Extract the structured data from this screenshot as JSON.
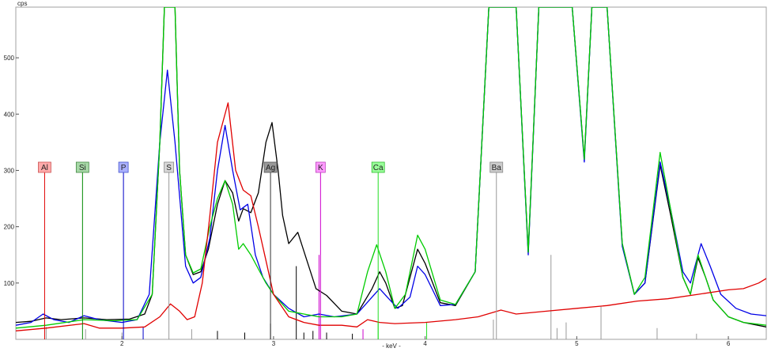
{
  "chart_data": {
    "type": "line",
    "xlabel": "- keV -",
    "ylabel": "cps",
    "xlim": [
      1.3,
      6.25
    ],
    "ylim": [
      0,
      590
    ],
    "x_ticks": [
      2,
      3,
      4,
      5,
      6
    ],
    "y_ticks": [
      100,
      200,
      300,
      400,
      500
    ],
    "grid": false,
    "series": [
      {
        "color": "#000000",
        "points": [
          [
            1.3,
            30
          ],
          [
            1.4,
            32
          ],
          [
            1.5,
            38
          ],
          [
            1.6,
            35
          ],
          [
            1.75,
            38
          ],
          [
            1.9,
            35
          ],
          [
            2.05,
            36
          ],
          [
            2.15,
            45
          ],
          [
            2.2,
            80
          ],
          [
            2.25,
            350
          ],
          [
            2.28,
            590
          ],
          [
            2.35,
            590
          ],
          [
            2.38,
            300
          ],
          [
            2.42,
            150
          ],
          [
            2.47,
            115
          ],
          [
            2.52,
            120
          ],
          [
            2.57,
            160
          ],
          [
            2.63,
            240
          ],
          [
            2.68,
            282
          ],
          [
            2.73,
            260
          ],
          [
            2.77,
            210
          ],
          [
            2.8,
            232
          ],
          [
            2.85,
            225
          ],
          [
            2.9,
            260
          ],
          [
            2.95,
            350
          ],
          [
            2.99,
            385
          ],
          [
            3.03,
            300
          ],
          [
            3.06,
            220
          ],
          [
            3.1,
            170
          ],
          [
            3.16,
            190
          ],
          [
            3.22,
            140
          ],
          [
            3.28,
            90
          ],
          [
            3.35,
            78
          ],
          [
            3.45,
            50
          ],
          [
            3.55,
            45
          ],
          [
            3.65,
            90
          ],
          [
            3.7,
            120
          ],
          [
            3.74,
            100
          ],
          [
            3.8,
            55
          ],
          [
            3.85,
            60
          ],
          [
            3.95,
            160
          ],
          [
            4.0,
            135
          ],
          [
            4.1,
            65
          ],
          [
            4.2,
            60
          ],
          [
            4.33,
            120
          ],
          [
            4.42,
            590
          ],
          [
            4.6,
            590
          ],
          [
            4.68,
            155
          ],
          [
            4.75,
            590
          ],
          [
            4.97,
            590
          ],
          [
            5.05,
            320
          ],
          [
            5.1,
            590
          ],
          [
            5.2,
            590
          ],
          [
            5.3,
            170
          ],
          [
            5.38,
            80
          ],
          [
            5.45,
            100
          ],
          [
            5.55,
            310
          ],
          [
            5.62,
            220
          ],
          [
            5.7,
            110
          ],
          [
            5.75,
            80
          ],
          [
            5.8,
            145
          ],
          [
            5.85,
            110
          ],
          [
            5.9,
            70
          ],
          [
            6.0,
            40
          ],
          [
            6.1,
            30
          ],
          [
            6.25,
            22
          ]
        ]
      },
      {
        "color": "#0000e6",
        "points": [
          [
            1.3,
            25
          ],
          [
            1.4,
            30
          ],
          [
            1.48,
            45
          ],
          [
            1.55,
            35
          ],
          [
            1.65,
            30
          ],
          [
            1.75,
            42
          ],
          [
            1.85,
            35
          ],
          [
            2.0,
            30
          ],
          [
            2.1,
            35
          ],
          [
            2.18,
            80
          ],
          [
            2.25,
            350
          ],
          [
            2.3,
            478
          ],
          [
            2.35,
            350
          ],
          [
            2.42,
            130
          ],
          [
            2.47,
            100
          ],
          [
            2.52,
            110
          ],
          [
            2.58,
            180
          ],
          [
            2.63,
            300
          ],
          [
            2.68,
            380
          ],
          [
            2.73,
            300
          ],
          [
            2.78,
            230
          ],
          [
            2.83,
            240
          ],
          [
            2.88,
            150
          ],
          [
            2.93,
            110
          ],
          [
            3.0,
            80
          ],
          [
            3.1,
            55
          ],
          [
            3.2,
            40
          ],
          [
            3.3,
            45
          ],
          [
            3.4,
            40
          ],
          [
            3.55,
            45
          ],
          [
            3.65,
            75
          ],
          [
            3.7,
            90
          ],
          [
            3.75,
            75
          ],
          [
            3.82,
            55
          ],
          [
            3.9,
            75
          ],
          [
            3.95,
            130
          ],
          [
            4.0,
            115
          ],
          [
            4.1,
            60
          ],
          [
            4.2,
            62
          ],
          [
            4.33,
            120
          ],
          [
            4.42,
            590
          ],
          [
            4.6,
            590
          ],
          [
            4.68,
            150
          ],
          [
            4.75,
            590
          ],
          [
            4.97,
            590
          ],
          [
            5.05,
            315
          ],
          [
            5.1,
            590
          ],
          [
            5.2,
            590
          ],
          [
            5.3,
            165
          ],
          [
            5.38,
            80
          ],
          [
            5.45,
            100
          ],
          [
            5.55,
            315
          ],
          [
            5.62,
            230
          ],
          [
            5.7,
            120
          ],
          [
            5.75,
            100
          ],
          [
            5.82,
            170
          ],
          [
            5.88,
            130
          ],
          [
            5.95,
            80
          ],
          [
            6.05,
            55
          ],
          [
            6.15,
            45
          ],
          [
            6.25,
            42
          ]
        ]
      },
      {
        "color": "#00cc00",
        "points": [
          [
            1.3,
            20
          ],
          [
            1.5,
            25
          ],
          [
            1.75,
            35
          ],
          [
            1.95,
            33
          ],
          [
            2.1,
            35
          ],
          [
            2.2,
            80
          ],
          [
            2.25,
            350
          ],
          [
            2.28,
            590
          ],
          [
            2.35,
            590
          ],
          [
            2.38,
            300
          ],
          [
            2.42,
            150
          ],
          [
            2.47,
            118
          ],
          [
            2.52,
            125
          ],
          [
            2.58,
            200
          ],
          [
            2.63,
            250
          ],
          [
            2.68,
            282
          ],
          [
            2.73,
            240
          ],
          [
            2.77,
            160
          ],
          [
            2.8,
            170
          ],
          [
            2.85,
            150
          ],
          [
            2.9,
            125
          ],
          [
            2.95,
            100
          ],
          [
            3.0,
            80
          ],
          [
            3.1,
            50
          ],
          [
            3.2,
            45
          ],
          [
            3.3,
            40
          ],
          [
            3.45,
            40
          ],
          [
            3.55,
            45
          ],
          [
            3.62,
            120
          ],
          [
            3.68,
            168
          ],
          [
            3.74,
            120
          ],
          [
            3.8,
            55
          ],
          [
            3.87,
            80
          ],
          [
            3.95,
            185
          ],
          [
            4.0,
            160
          ],
          [
            4.1,
            70
          ],
          [
            4.2,
            62
          ],
          [
            4.33,
            120
          ],
          [
            4.42,
            590
          ],
          [
            4.6,
            590
          ],
          [
            4.68,
            155
          ],
          [
            4.75,
            590
          ],
          [
            4.97,
            590
          ],
          [
            5.05,
            320
          ],
          [
            5.1,
            590
          ],
          [
            5.2,
            590
          ],
          [
            5.3,
            170
          ],
          [
            5.38,
            80
          ],
          [
            5.45,
            110
          ],
          [
            5.55,
            332
          ],
          [
            5.62,
            230
          ],
          [
            5.7,
            110
          ],
          [
            5.75,
            80
          ],
          [
            5.8,
            150
          ],
          [
            5.85,
            110
          ],
          [
            5.9,
            70
          ],
          [
            6.0,
            40
          ],
          [
            6.1,
            30
          ],
          [
            6.25,
            25
          ]
        ]
      },
      {
        "color": "#e00000",
        "points": [
          [
            1.3,
            15
          ],
          [
            1.5,
            20
          ],
          [
            1.75,
            28
          ],
          [
            1.85,
            20
          ],
          [
            2.0,
            20
          ],
          [
            2.15,
            22
          ],
          [
            2.25,
            40
          ],
          [
            2.32,
            63
          ],
          [
            2.38,
            50
          ],
          [
            2.43,
            35
          ],
          [
            2.48,
            40
          ],
          [
            2.53,
            100
          ],
          [
            2.58,
            220
          ],
          [
            2.63,
            350
          ],
          [
            2.7,
            420
          ],
          [
            2.75,
            300
          ],
          [
            2.8,
            265
          ],
          [
            2.85,
            255
          ],
          [
            2.9,
            200
          ],
          [
            2.95,
            140
          ],
          [
            3.0,
            80
          ],
          [
            3.1,
            40
          ],
          [
            3.2,
            30
          ],
          [
            3.3,
            25
          ],
          [
            3.45,
            25
          ],
          [
            3.55,
            22
          ],
          [
            3.62,
            35
          ],
          [
            3.7,
            30
          ],
          [
            3.8,
            28
          ],
          [
            4.0,
            30
          ],
          [
            4.2,
            35
          ],
          [
            4.35,
            40
          ],
          [
            4.5,
            52
          ],
          [
            4.6,
            45
          ],
          [
            4.8,
            50
          ],
          [
            5.0,
            55
          ],
          [
            5.2,
            60
          ],
          [
            5.4,
            68
          ],
          [
            5.6,
            72
          ],
          [
            5.8,
            80
          ],
          [
            6.0,
            88
          ],
          [
            6.1,
            90
          ],
          [
            6.2,
            100
          ],
          [
            6.25,
            108
          ]
        ]
      }
    ],
    "element_markers": [
      {
        "label": "Al",
        "x": 1.49,
        "line": "#e00000",
        "bg": "#ffaaaa",
        "border": "#cc5555"
      },
      {
        "label": "Si",
        "x": 1.74,
        "line": "#008800",
        "bg": "#a6d8a6",
        "border": "#448844"
      },
      {
        "label": "P",
        "x": 2.01,
        "line": "#0000c8",
        "bg": "#aab0ff",
        "border": "#4455cc"
      },
      {
        "label": "S",
        "x": 2.31,
        "line": "#999999",
        "bg": "#d8d8d8",
        "border": "#888888"
      },
      {
        "label": "Ag",
        "x": 2.98,
        "line": "#333333",
        "bg": "#999999",
        "border": "#555555"
      },
      {
        "label": "K",
        "x": 3.31,
        "line": "#cc00cc",
        "bg": "#ff99ff",
        "border": "#bb44bb"
      },
      {
        "label": "Ca",
        "x": 3.69,
        "line": "#22dd22",
        "bg": "#99ff99",
        "border": "#33bb33"
      },
      {
        "label": "Ba",
        "x": 4.47,
        "line": "#999999",
        "bg": "#cccccc",
        "border": "#888888"
      }
    ],
    "ref_lines": [
      {
        "x": 1.5,
        "h": 22,
        "color": "#999999"
      },
      {
        "x": 1.76,
        "h": 18,
        "color": "#999999"
      },
      {
        "x": 2.0,
        "h": 12,
        "color": "#999999"
      },
      {
        "x": 2.14,
        "h": 22,
        "color": "#0000c8"
      },
      {
        "x": 2.46,
        "h": 18,
        "color": "#999999"
      },
      {
        "x": 2.63,
        "h": 15,
        "color": "#000000"
      },
      {
        "x": 2.81,
        "h": 12,
        "color": "#000000"
      },
      {
        "x": 2.98,
        "h": 28,
        "color": "#000000"
      },
      {
        "x": 3.15,
        "h": 130,
        "color": "#000000"
      },
      {
        "x": 3.2,
        "h": 12,
        "color": "#000000"
      },
      {
        "x": 3.26,
        "h": 15,
        "color": "#000000"
      },
      {
        "x": 3.3,
        "h": 150,
        "color": "#cc00cc"
      },
      {
        "x": 3.35,
        "h": 12,
        "color": "#000000"
      },
      {
        "x": 3.52,
        "h": 10,
        "color": "#000000"
      },
      {
        "x": 3.59,
        "h": 18,
        "color": "#cc00cc"
      },
      {
        "x": 3.69,
        "h": 30,
        "color": "#22dd22"
      },
      {
        "x": 4.01,
        "h": 30,
        "color": "#22dd22"
      },
      {
        "x": 4.45,
        "h": 35,
        "color": "#999999"
      },
      {
        "x": 4.83,
        "h": 150,
        "color": "#999999"
      },
      {
        "x": 4.87,
        "h": 20,
        "color": "#999999"
      },
      {
        "x": 4.93,
        "h": 30,
        "color": "#999999"
      },
      {
        "x": 5.16,
        "h": 58,
        "color": "#999999"
      },
      {
        "x": 5.53,
        "h": 20,
        "color": "#999999"
      },
      {
        "x": 5.79,
        "h": 10,
        "color": "#999999"
      }
    ]
  }
}
